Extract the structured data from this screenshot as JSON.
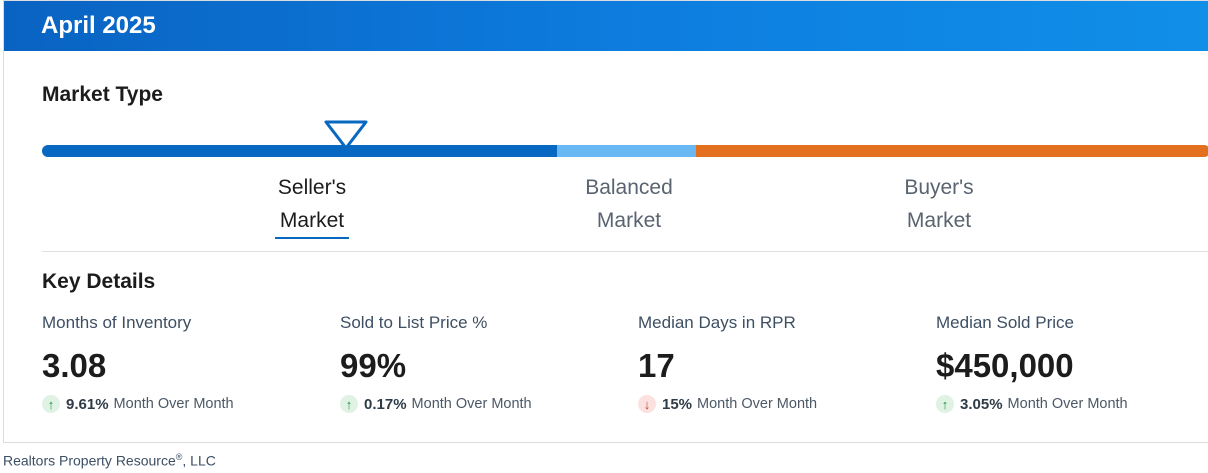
{
  "header": {
    "title": "April 2025"
  },
  "market_type": {
    "title": "Market Type",
    "current": "Seller's Market",
    "segments": [
      {
        "line1": "Seller's",
        "line2": "Market",
        "color": "#0768c1",
        "active": true
      },
      {
        "line1": "Balanced",
        "line2": "Market",
        "color": "#68b8f3",
        "active": false
      },
      {
        "line1": "Buyer's",
        "line2": "Market",
        "color": "#e2701f",
        "active": false
      }
    ]
  },
  "key_details": {
    "title": "Key Details",
    "metrics": [
      {
        "label": "Months of Inventory",
        "value": "3.08",
        "direction": "up",
        "change": "9.61%",
        "period": "Month Over Month"
      },
      {
        "label": "Sold to List Price %",
        "value": "99%",
        "direction": "up",
        "change": "0.17%",
        "period": "Month Over Month"
      },
      {
        "label": "Median Days in RPR",
        "value": "17",
        "direction": "down",
        "change": "15%",
        "period": "Month Over Month"
      },
      {
        "label": "Median Sold Price",
        "value": "$450,000",
        "direction": "up",
        "change": "3.05%",
        "period": "Month Over Month"
      }
    ]
  },
  "footer": {
    "company": "Realtors Property Resource",
    "mark": "®",
    "suffix": ", LLC"
  },
  "colors": {
    "header": "#0a63c2",
    "up": "#23913f",
    "down": "#d2382b"
  }
}
